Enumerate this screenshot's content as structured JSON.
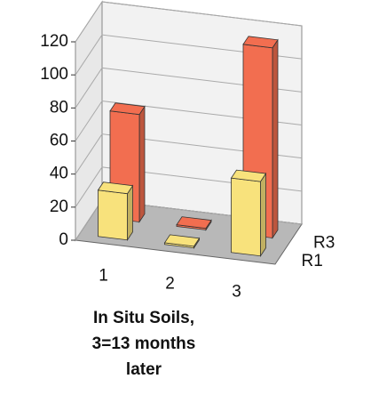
{
  "chart_data": {
    "type": "bar3d",
    "categories": [
      "1",
      "2",
      "3"
    ],
    "series": [
      {
        "name": "R1",
        "color": "#f8e27c",
        "values": [
          28,
          1,
          45
        ]
      },
      {
        "name": "R3",
        "color": "#f26e50",
        "values": [
          65,
          1,
          115
        ]
      }
    ],
    "ylim": [
      0,
      120
    ],
    "yticks": [
      0,
      20,
      40,
      60,
      80,
      100,
      120
    ],
    "grid": true,
    "xlabel": [
      "In Situ Soils,",
      "3=13 months",
      "later"
    ]
  }
}
